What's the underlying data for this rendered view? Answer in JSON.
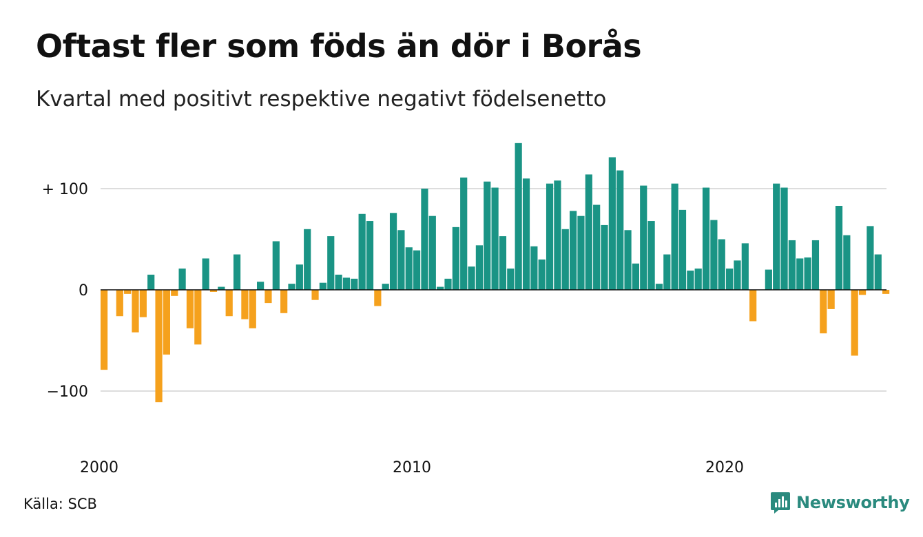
{
  "title": "Oftast fler som föds än dör i Borås",
  "subtitle": "Kvartal med positivt respektive negativt födelsenetto",
  "source": "Källa: SCB",
  "brand": "Newsworthy",
  "colors": {
    "positive": "#1a9485",
    "negative": "#f5a11d",
    "grid": "#dddddd",
    "zero_line": "#111111",
    "brand": "#2a8a7e"
  },
  "chart_data": {
    "type": "bar",
    "x_start": "2000 Q1",
    "x_ticks": [
      "2000",
      "2010",
      "2020"
    ],
    "y_ticks": [
      {
        "value": 100,
        "label": "+ 100"
      },
      {
        "value": 0,
        "label": "0"
      },
      {
        "value": -100,
        "label": "−100"
      }
    ],
    "ylim": [
      -150,
      150
    ],
    "values": [
      -79,
      null,
      -26,
      -4,
      -42,
      -27,
      15,
      -111,
      -64,
      -6,
      21,
      -38,
      -54,
      31,
      -2,
      3,
      -26,
      35,
      -29,
      -38,
      8,
      -13,
      48,
      -23,
      6,
      25,
      60,
      -10,
      7,
      53,
      15,
      12,
      11,
      75,
      68,
      -16,
      6,
      76,
      59,
      42,
      39,
      100,
      73,
      3,
      11,
      62,
      111,
      23,
      44,
      107,
      101,
      53,
      21,
      145,
      110,
      43,
      30,
      105,
      108,
      60,
      78,
      73,
      114,
      84,
      64,
      131,
      118,
      59,
      26,
      103,
      68,
      6,
      35,
      105,
      79,
      19,
      21,
      101,
      69,
      50,
      21,
      29,
      46,
      -31,
      null,
      20,
      105,
      101,
      49,
      31,
      32,
      49,
      -43,
      -19,
      83,
      54,
      -65,
      -5,
      63,
      35,
      -4
    ]
  }
}
